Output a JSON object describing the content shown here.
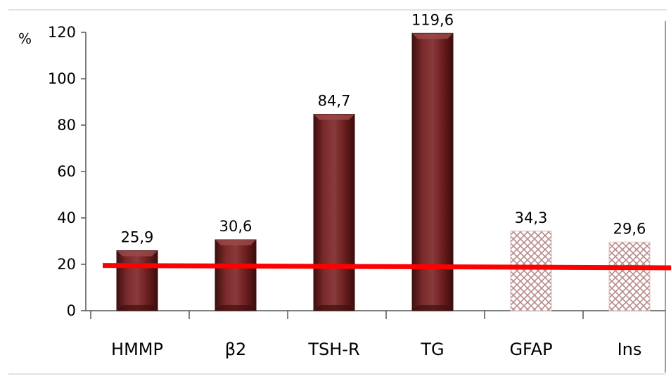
{
  "chart_data": {
    "type": "bar",
    "ylabel": "%",
    "ylim": [
      0,
      120
    ],
    "yticks": [
      "0",
      "20",
      "40",
      "60",
      "80",
      "100",
      "120"
    ],
    "categories": [
      "HMMP",
      "β2",
      "TSH-R",
      "TG",
      "GFAP",
      "Ins"
    ],
    "values": [
      25.9,
      30.6,
      84.7,
      119.6,
      34.3,
      29.6
    ],
    "data_labels": [
      "25,9",
      "30,6",
      "84,7",
      "119,6",
      "34,3",
      "29,6"
    ],
    "bar_styles": [
      "solid",
      "solid",
      "solid",
      "solid",
      "hatched",
      "hatched"
    ],
    "threshold_line": {
      "y_start": 19.5,
      "y_end": 18.5
    },
    "grid": false,
    "legend": "none"
  },
  "colors": {
    "bar_solid": "#6b1e1e",
    "bar_solid_dark": "#3e0f0f",
    "bar_solid_light": "#9b4a4a",
    "bar_hatch": "#b88a8a",
    "threshold": "#ff0000",
    "axis": "#555555"
  }
}
